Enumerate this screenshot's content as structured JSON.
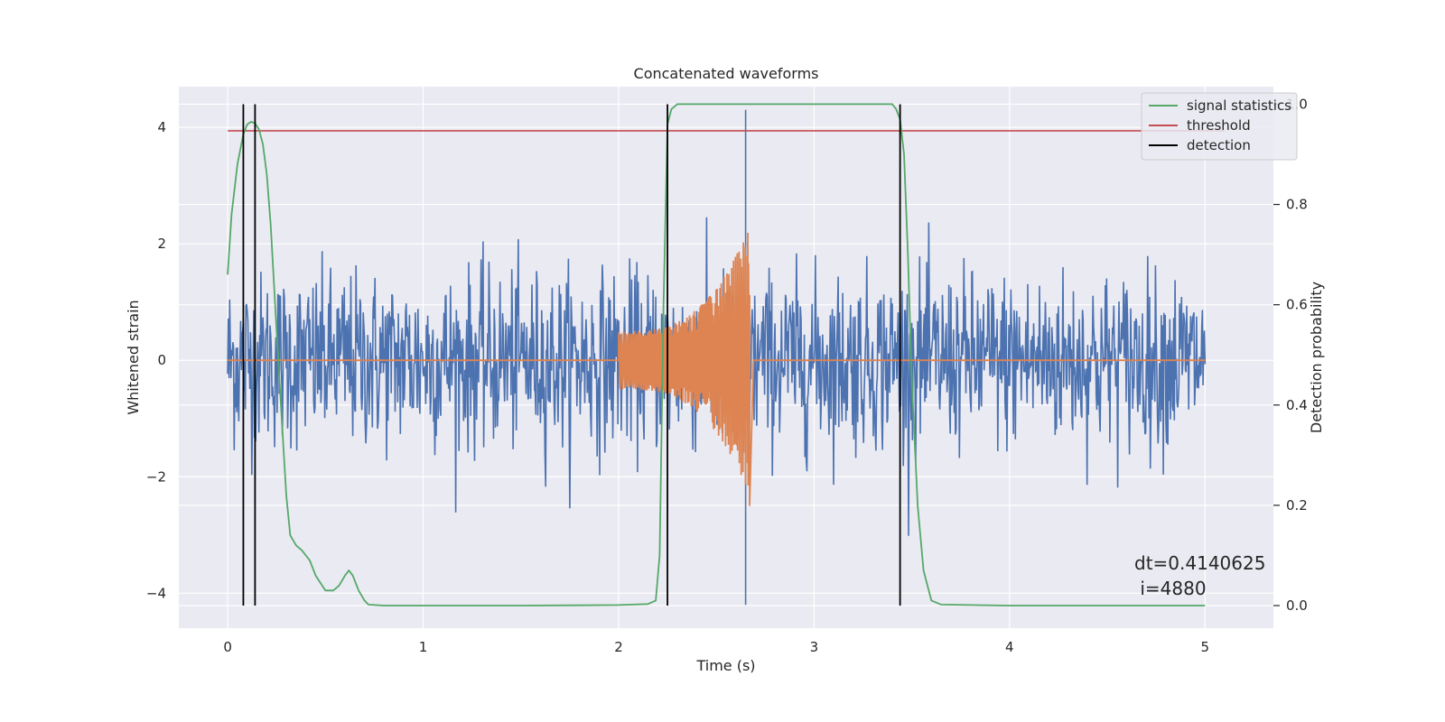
{
  "chart_data": {
    "type": "line",
    "title": "Concatenated waveforms",
    "xlabel": "Time (s)",
    "ylabel_left": "Whitened strain",
    "ylabel_right": "Detection probability",
    "xlim": [
      -0.25,
      5.35
    ],
    "ylim_left": [
      -4.6,
      4.7
    ],
    "ylim_right": [
      -0.045,
      1.035
    ],
    "x_ticks": [
      0,
      1,
      2,
      3,
      4,
      5
    ],
    "y_ticks_left": [
      -4,
      -2,
      0,
      2,
      4
    ],
    "y_ticks_right": [
      0.0,
      0.2,
      0.4,
      0.6,
      0.8,
      1.0
    ],
    "x_tick_labels": [
      "0",
      "1",
      "2",
      "3",
      "4",
      "5"
    ],
    "y_tick_labels_left": [
      "−4",
      "−2",
      "0",
      "2",
      "4"
    ],
    "y_tick_labels_right": [
      "0.0",
      "0.2",
      "0.4",
      "0.6",
      "0.8",
      "1.0"
    ],
    "grid": true,
    "legend_position": "top-right",
    "legend": [
      {
        "label": "signal statistics",
        "color": "#55a868"
      },
      {
        "label": "threshold",
        "color": "#c44e52"
      },
      {
        "label": "detection",
        "color": "#000000"
      }
    ],
    "colors": {
      "strain": "#4c72b0",
      "template": "#dd8452",
      "statistics": "#55a868",
      "threshold": "#c44e52",
      "detection": "#000000",
      "axes_bg": "#eaeaf2",
      "grid": "#ffffff"
    },
    "series": [
      {
        "axis": "left",
        "kind": "noise",
        "x_range": [
          0,
          5
        ],
        "typical_range": [
          -1.5,
          2.5
        ],
        "extremes": [
          -4.2,
          4.3
        ]
      },
      {
        "axis": "left",
        "kind": "chirp",
        "x_range": [
          2.0,
          2.67
        ],
        "amplitude_start": 0.5,
        "amplitude_end_positive": 2.3,
        "amplitude_end_negative": -2.5
      },
      {
        "name": "signal statistics",
        "axis": "right",
        "x": [
          0.0,
          0.02,
          0.05,
          0.08,
          0.1,
          0.12,
          0.14,
          0.16,
          0.18,
          0.2,
          0.22,
          0.25,
          0.28,
          0.3,
          0.32,
          0.35,
          0.38,
          0.42,
          0.45,
          0.5,
          0.54,
          0.57,
          0.6,
          0.62,
          0.64,
          0.67,
          0.7,
          0.72,
          0.8,
          1.0,
          1.5,
          2.0,
          2.15,
          2.19,
          2.21,
          2.23,
          2.25,
          2.27,
          2.3,
          2.5,
          3.0,
          3.4,
          3.42,
          3.44,
          3.46,
          3.48,
          3.5,
          3.53,
          3.56,
          3.6,
          3.65,
          4.0,
          4.5,
          5.0
        ],
        "y": [
          0.66,
          0.78,
          0.88,
          0.94,
          0.96,
          0.965,
          0.962,
          0.95,
          0.92,
          0.86,
          0.76,
          0.55,
          0.35,
          0.22,
          0.14,
          0.12,
          0.11,
          0.09,
          0.06,
          0.03,
          0.03,
          0.04,
          0.06,
          0.07,
          0.06,
          0.03,
          0.01,
          0.002,
          0.0,
          0.0,
          0.0,
          0.001,
          0.003,
          0.01,
          0.1,
          0.6,
          0.96,
          0.99,
          1.0,
          1.0,
          1.0,
          1.0,
          0.99,
          0.97,
          0.9,
          0.7,
          0.45,
          0.2,
          0.07,
          0.01,
          0.002,
          0.0,
          0.0,
          0.0
        ]
      },
      {
        "name": "threshold",
        "axis": "right",
        "x": [
          0,
          5.1
        ],
        "y": [
          0.947,
          0.947
        ]
      }
    ],
    "detections": [
      0.08,
      0.14,
      2.25,
      3.44
    ],
    "annotation": {
      "line1": "dt=0.4140625",
      "line2": " i=4880"
    }
  }
}
